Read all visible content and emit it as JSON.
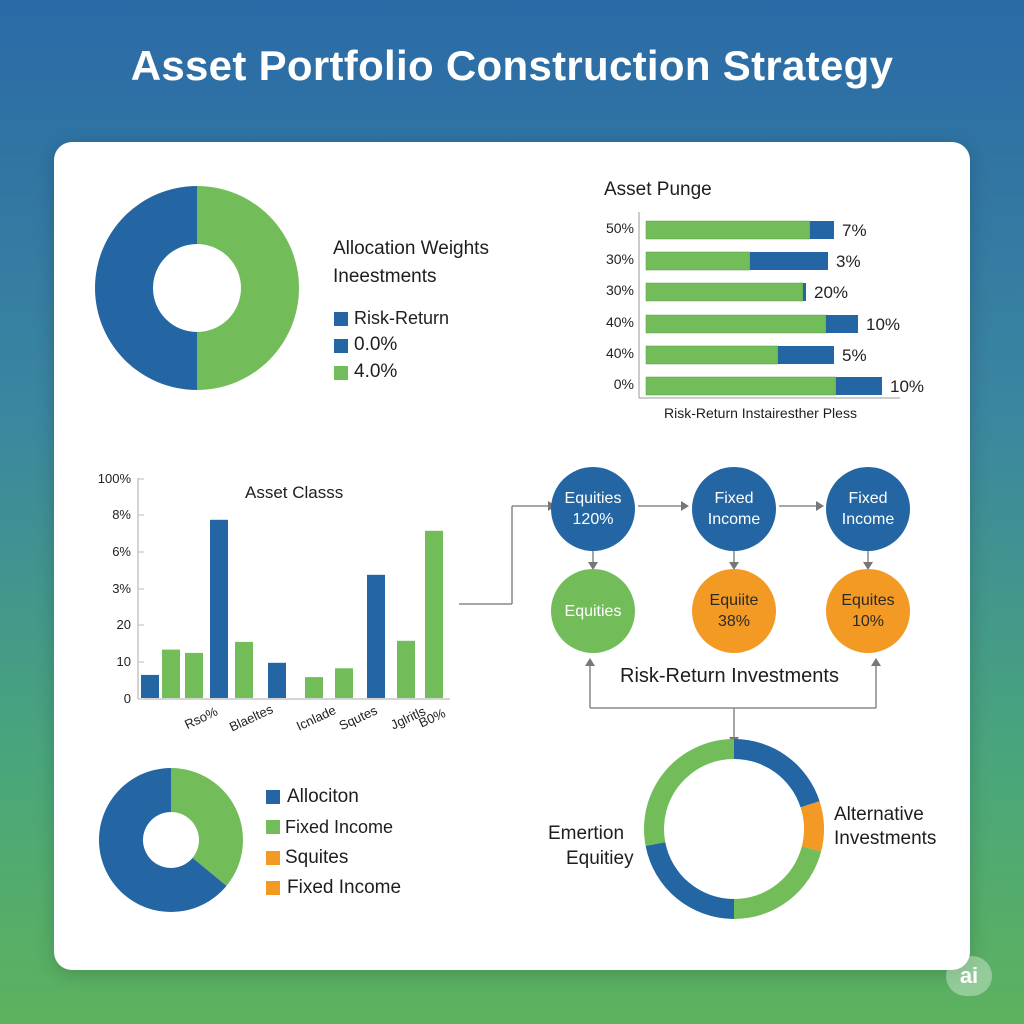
{
  "title": "Asset Portfolio Construction Strategy",
  "colors": {
    "blue": "#2366a3",
    "green": "#72bd5a",
    "orange": "#f39a25"
  },
  "chart_data": [
    {
      "type": "pie",
      "title": "Allocation Weights",
      "subtitle": "Ineestments",
      "legend": [
        "Risk-Return",
        "0.0%",
        "4.0%"
      ],
      "legend_colors": [
        "blue",
        "blue",
        "green"
      ],
      "slices": [
        {
          "color": "blue",
          "value": 50
        },
        {
          "color": "green",
          "value": 50
        }
      ]
    },
    {
      "type": "bar",
      "title": "Asset Punge",
      "xlabel": "Risk-Return Instairesther Pless",
      "categories": [
        "50%",
        "30%",
        "30%",
        "40%",
        "40%",
        "0%"
      ],
      "series": [
        {
          "color": "green",
          "values": [
            164,
            104,
            157,
            180,
            132,
            190
          ]
        },
        {
          "color": "blue",
          "values": [
            24,
            78,
            3,
            32,
            56,
            46
          ]
        }
      ],
      "labels": [
        "7%",
        "3%",
        "20%",
        "10%",
        "5%",
        "10%"
      ]
    },
    {
      "type": "bar",
      "title": "Asset Classs",
      "y_ticks": [
        "100%",
        "8%",
        "6%",
        "3%",
        "20",
        "10",
        "0"
      ],
      "x_labels": [
        "Rso%",
        "Blaeltes",
        "Icnlade",
        "Squtes",
        "Jglritls",
        "B0%"
      ],
      "values": [
        10.5,
        22,
        20.5,
        81,
        25.5,
        16,
        9.5,
        13.5,
        56,
        26,
        76
      ],
      "colors": [
        "blue",
        "green",
        "green",
        "blue",
        "green",
        "blue",
        "green",
        "green",
        "blue",
        "green",
        "green"
      ],
      "ylim": [
        0,
        100
      ]
    },
    {
      "type": "pie",
      "legend": [
        "Allociton",
        "Fixed Income",
        "Squites",
        "Fixed Income"
      ],
      "legend_colors": [
        "blue",
        "green",
        "orange",
        "orange"
      ],
      "slices": [
        {
          "color": "green",
          "value": 36
        },
        {
          "color": "blue",
          "value": 64
        }
      ]
    },
    {
      "type": "pie",
      "labels": {
        "left_line1": "Emertion",
        "left_line2": "Equitiey",
        "right_line1": "Alternative",
        "right_line2": "Investments"
      },
      "slices": [
        {
          "color": "blue",
          "value": 20
        },
        {
          "color": "orange",
          "value": 9
        },
        {
          "color": "green",
          "value": 21
        },
        {
          "color": "blue",
          "value": 22
        },
        {
          "color": "green",
          "value": 28
        }
      ]
    }
  ],
  "flow": {
    "top": [
      {
        "line1": "Equities",
        "line2": "120%"
      },
      {
        "line1": "Fixed",
        "line2": "Income"
      },
      {
        "line1": "Fixed",
        "line2": "Income"
      }
    ],
    "bottom": [
      {
        "line1": "Equities",
        "line2": ""
      },
      {
        "line1": "Equiite",
        "line2": "38%"
      },
      {
        "line1": "Equites",
        "line2": "10%"
      }
    ],
    "caption": "Risk-Return Investments"
  },
  "badge": "ai"
}
